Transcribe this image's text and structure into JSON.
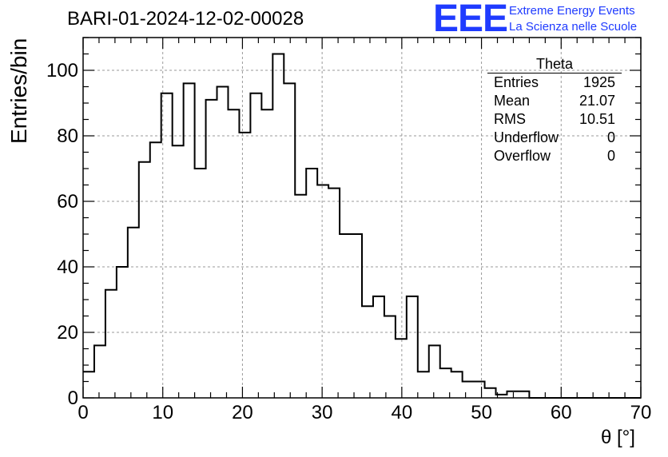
{
  "chart_data": {
    "type": "histogram",
    "title": "BARI-01-2024-12-02-00028",
    "xlabel": "θ [°]",
    "ylabel": "Entries/bin",
    "xlim": [
      0,
      70
    ],
    "ylim": [
      0,
      110
    ],
    "x_ticks": [
      0,
      10,
      20,
      30,
      40,
      50,
      60,
      70
    ],
    "y_ticks": [
      0,
      20,
      40,
      60,
      80,
      100
    ],
    "grid": true,
    "bin_width": 1.4,
    "bin_edges_start": 0,
    "values": [
      8,
      16,
      33,
      40,
      52,
      72,
      78,
      93,
      77,
      96,
      70,
      91,
      95,
      88,
      81,
      93,
      88,
      105,
      96,
      62,
      70,
      65,
      64,
      50,
      50,
      28,
      31,
      25,
      18,
      31,
      8,
      16,
      9,
      8,
      5,
      5,
      3,
      1,
      2,
      2,
      0,
      0,
      0,
      0,
      0,
      0,
      0,
      0,
      0,
      0
    ],
    "stats_box": {
      "title": "Theta",
      "rows": [
        {
          "label": "Entries",
          "value": "1925"
        },
        {
          "label": "Mean",
          "value": "21.07"
        },
        {
          "label": "RMS",
          "value": "10.51"
        },
        {
          "label": "Underflow",
          "value": "0"
        },
        {
          "label": "Overflow",
          "value": "0"
        }
      ]
    }
  },
  "logo": {
    "mark": "EEE",
    "line1": "Extreme Energy Events",
    "line2": "La Scienza nelle Scuole"
  },
  "colors": {
    "line": "#000000",
    "grid": "#9a9a9a",
    "logo": "#1f3bff"
  }
}
